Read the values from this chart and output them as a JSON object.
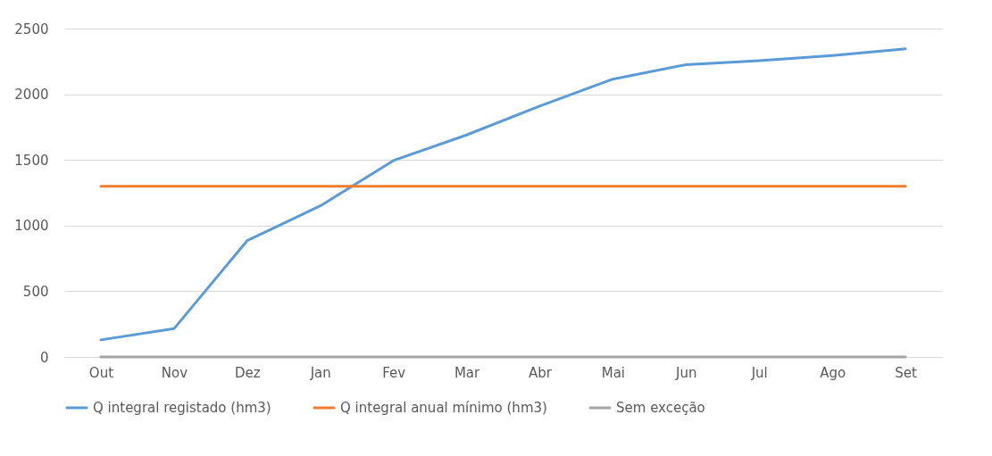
{
  "chart_data": {
    "type": "line",
    "categories": [
      "Out",
      "Nov",
      "Dez",
      "Jan",
      "Fev",
      "Mar",
      "Abr",
      "Mai",
      "Jun",
      "Jul",
      "Ago",
      "Set"
    ],
    "series": [
      {
        "name": "Q integral registado (hm3)",
        "color": "#5b9bd5",
        "values": [
          130,
          215,
          885,
          1150,
          1495,
          1690,
          1910,
          2115,
          2225,
          2255,
          2295,
          2345
        ]
      },
      {
        "name": "Q integral anual mínimo (hm3)",
        "color": "#ed7d31",
        "values": [
          1300,
          1300,
          1300,
          1300,
          1300,
          1300,
          1300,
          1300,
          1300,
          1300,
          1300,
          1300
        ]
      },
      {
        "name": "Sem exceção",
        "color": "#a5a5a5",
        "values": [
          0,
          0,
          0,
          0,
          0,
          0,
          0,
          0,
          0,
          0,
          0,
          0
        ]
      }
    ],
    "ylim": [
      0,
      2500
    ],
    "yticks": [
      0,
      500,
      1000,
      1500,
      2000,
      2500
    ],
    "grid": "y",
    "legend": "bottom"
  }
}
